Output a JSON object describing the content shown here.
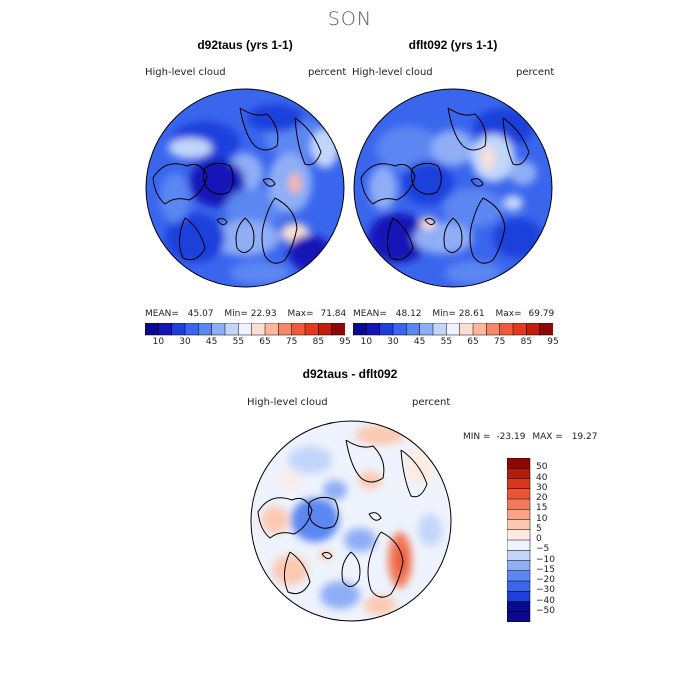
{
  "title": "SON",
  "colors": {
    "abs_scale": [
      "#0a0a8c",
      "#1414b8",
      "#1f3fdc",
      "#3a66ee",
      "#5c86f2",
      "#8faef6",
      "#c2d6fa",
      "#eef3fd",
      "#fde0d2",
      "#fbb79c",
      "#f6876a",
      "#f05a3c",
      "#e23a1e",
      "#c01f0e",
      "#8c0a04"
    ],
    "diff_scale": [
      "#0a0a8c",
      "#1f3fdc",
      "#3a66ee",
      "#5c86f2",
      "#8faef6",
      "#c2d6fa",
      "#eef3fd",
      "#fdebe2",
      "#fbc9b2",
      "#f7a386",
      "#f27a5a",
      "#ea5535",
      "#d9361a",
      "#b01e0c",
      "#8c0a04"
    ]
  },
  "panels": [
    {
      "title": "d92taus (yrs 1-1)",
      "variable": "High-level cloud",
      "units": "percent",
      "mean_label": "MEAN=",
      "mean": "45.07",
      "min_label": "Min=",
      "min": "22.93",
      "max_label": "Max=",
      "max": "71.84",
      "colorbar_ticks": [
        "10",
        "30",
        "45",
        "55",
        "65",
        "75",
        "85",
        "95"
      ]
    },
    {
      "title": "dflt092 (yrs 1-1)",
      "variable": "High-level cloud",
      "units": "percent",
      "mean_label": "MEAN=",
      "mean": "48.12",
      "min_label": "Min=",
      "min": "28.61",
      "max_label": "Max=",
      "max": "69.79",
      "colorbar_ticks": [
        "10",
        "30",
        "45",
        "55",
        "65",
        "75",
        "85",
        "95"
      ]
    }
  ],
  "diff": {
    "title": "d92taus - dflt092",
    "variable": "High-level cloud",
    "units": "percent",
    "min_label": "MIN =",
    "min": "-23.19",
    "max_label": "MAX =",
    "max": "19.27",
    "colorbar_ticks": [
      "50",
      "40",
      "30",
      "20",
      "15",
      "10",
      "5",
      "0",
      "−5",
      "−10",
      "−15",
      "−20",
      "−30",
      "−40",
      "−50"
    ]
  }
}
